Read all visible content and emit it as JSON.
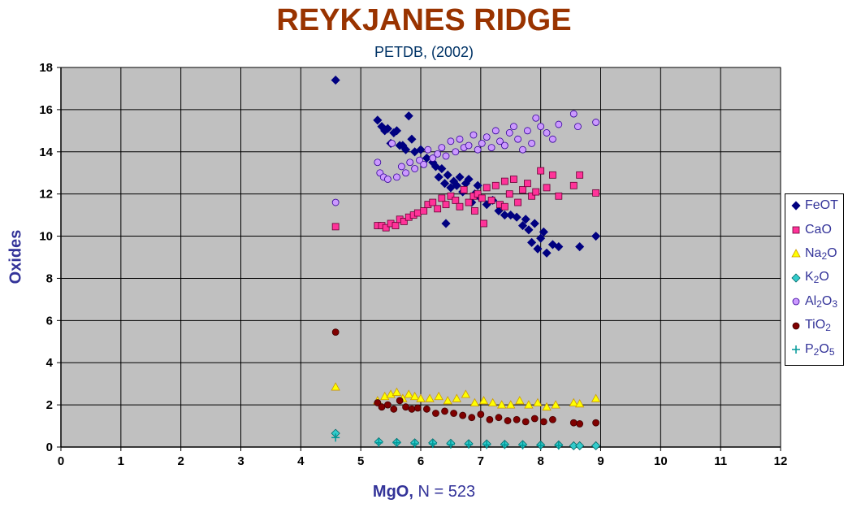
{
  "chart_data": {
    "type": "scatter",
    "title": "REYKJANES RIDGE",
    "subtitle": "PETDB, (2002)",
    "xlabel": "MgO,",
    "xlabel_note": "N = 523",
    "ylabel": "Oxides",
    "xlim": [
      0,
      12
    ],
    "ylim": [
      0,
      18
    ],
    "x_ticks": [
      "0",
      "1",
      "2",
      "3",
      "4",
      "5",
      "6",
      "7",
      "8",
      "9",
      "10",
      "11",
      "12"
    ],
    "y_ticks": [
      "0",
      "2",
      "4",
      "6",
      "8",
      "10",
      "12",
      "14",
      "16",
      "18"
    ],
    "grid": true,
    "plot_background": "#C0C0C0",
    "legend_position": "right",
    "series": [
      {
        "name": "FeOT",
        "marker": "diamond",
        "color": "#000080",
        "x": [
          4.58,
          5.28,
          5.35,
          5.4,
          5.45,
          5.5,
          5.55,
          5.6,
          5.65,
          5.7,
          5.75,
          5.8,
          5.85,
          5.9,
          6.0,
          6.1,
          6.2,
          6.25,
          6.3,
          6.35,
          6.4,
          6.45,
          6.5,
          6.55,
          6.6,
          6.65,
          6.7,
          6.75,
          6.8,
          6.85,
          6.9,
          6.95,
          7.0,
          7.1,
          7.2,
          7.3,
          7.4,
          7.5,
          7.6,
          7.7,
          7.75,
          7.8,
          7.85,
          7.9,
          7.95,
          8.0,
          8.05,
          8.1,
          8.2,
          8.3,
          8.65,
          8.92,
          6.42
        ],
        "y": [
          17.4,
          15.5,
          15.2,
          15.0,
          15.1,
          14.4,
          14.9,
          15.0,
          14.3,
          14.3,
          14.1,
          15.7,
          14.6,
          14.0,
          14.1,
          13.7,
          13.5,
          13.3,
          12.8,
          13.2,
          12.5,
          12.9,
          12.3,
          12.6,
          12.4,
          12.8,
          12.1,
          12.5,
          12.7,
          11.6,
          12.0,
          12.4,
          11.8,
          11.5,
          11.7,
          11.2,
          11.0,
          11.0,
          10.9,
          10.5,
          10.8,
          10.3,
          9.7,
          10.6,
          9.4,
          9.9,
          10.2,
          9.2,
          9.6,
          9.5,
          9.5,
          10.0,
          10.6
        ]
      },
      {
        "name": "CaO",
        "marker": "square",
        "color": "#FF3399",
        "stroke": "#660033",
        "x": [
          4.58,
          5.28,
          5.35,
          5.42,
          5.5,
          5.58,
          5.65,
          5.72,
          5.8,
          5.88,
          5.95,
          6.05,
          6.12,
          6.2,
          6.28,
          6.35,
          6.42,
          6.5,
          6.58,
          6.65,
          6.72,
          6.8,
          6.88,
          6.95,
          7.02,
          7.1,
          7.18,
          7.25,
          7.32,
          7.4,
          7.48,
          7.55,
          7.62,
          7.7,
          7.78,
          7.85,
          7.92,
          8.0,
          8.1,
          8.2,
          8.3,
          8.55,
          8.65,
          8.92,
          7.05,
          7.4,
          6.9
        ],
        "y": [
          10.45,
          10.5,
          10.5,
          10.4,
          10.6,
          10.5,
          10.8,
          10.7,
          10.9,
          11.0,
          11.1,
          11.2,
          11.5,
          11.6,
          11.3,
          11.8,
          11.5,
          11.9,
          11.7,
          11.4,
          12.2,
          11.6,
          11.9,
          12.0,
          11.8,
          12.3,
          11.7,
          12.4,
          11.5,
          12.6,
          12.0,
          12.7,
          11.6,
          12.2,
          12.5,
          11.9,
          12.1,
          13.1,
          12.3,
          12.9,
          11.9,
          12.4,
          12.9,
          12.05,
          10.6,
          11.4,
          11.2
        ]
      },
      {
        "name": "Na2O",
        "marker": "triangle",
        "color": "#FFFF00",
        "stroke": "#CC9900",
        "x": [
          4.58,
          5.28,
          5.4,
          5.5,
          5.6,
          5.7,
          5.8,
          5.9,
          6.0,
          6.15,
          6.3,
          6.45,
          6.6,
          6.75,
          6.9,
          7.05,
          7.2,
          7.35,
          7.5,
          7.65,
          7.8,
          7.95,
          8.1,
          8.25,
          8.55,
          8.65,
          8.92
        ],
        "y": [
          2.85,
          2.2,
          2.4,
          2.5,
          2.6,
          2.3,
          2.5,
          2.4,
          2.3,
          2.3,
          2.4,
          2.2,
          2.3,
          2.5,
          2.1,
          2.2,
          2.1,
          2.0,
          2.0,
          2.2,
          2.0,
          2.1,
          1.9,
          2.0,
          2.1,
          2.05,
          2.3
        ]
      },
      {
        "name": "K2O",
        "marker": "diamond",
        "color": "#33CCCC",
        "stroke": "#006666",
        "x": [
          4.58,
          5.3,
          5.6,
          5.9,
          6.2,
          6.5,
          6.8,
          7.1,
          7.4,
          7.7,
          8.0,
          8.3,
          8.55,
          8.65,
          8.92
        ],
        "y": [
          0.65,
          0.25,
          0.22,
          0.2,
          0.2,
          0.18,
          0.16,
          0.15,
          0.13,
          0.12,
          0.1,
          0.1,
          0.06,
          0.06,
          0.06
        ]
      },
      {
        "name": "Al2O3",
        "marker": "circle",
        "color": "#CC99FF",
        "stroke": "#330099",
        "x": [
          4.58,
          5.28,
          5.32,
          5.38,
          5.45,
          5.52,
          5.6,
          5.68,
          5.75,
          5.82,
          5.9,
          5.98,
          6.05,
          6.12,
          6.2,
          6.28,
          6.35,
          6.42,
          6.5,
          6.58,
          6.65,
          6.72,
          6.8,
          6.88,
          6.95,
          7.02,
          7.1,
          7.18,
          7.25,
          7.32,
          7.4,
          7.48,
          7.55,
          7.62,
          7.7,
          7.78,
          7.85,
          7.92,
          8.0,
          8.1,
          8.2,
          8.3,
          8.55,
          8.62,
          8.92
        ],
        "y": [
          11.6,
          13.5,
          13.0,
          12.8,
          12.7,
          14.4,
          12.8,
          13.3,
          13.0,
          13.5,
          13.2,
          13.6,
          13.4,
          14.1,
          13.7,
          13.9,
          14.2,
          13.8,
          14.5,
          14.0,
          14.6,
          14.2,
          14.3,
          14.8,
          14.1,
          14.4,
          14.7,
          14.2,
          15.0,
          14.5,
          14.3,
          14.9,
          15.2,
          14.6,
          14.1,
          15.0,
          14.4,
          15.6,
          15.2,
          14.9,
          14.6,
          15.3,
          15.8,
          15.2,
          15.4
        ]
      },
      {
        "name": "TiO2",
        "marker": "circle",
        "color": "#800000",
        "stroke": "#400000",
        "x": [
          4.58,
          5.28,
          5.35,
          5.45,
          5.55,
          5.65,
          5.75,
          5.85,
          5.95,
          6.1,
          6.25,
          6.4,
          6.55,
          6.7,
          6.85,
          7.0,
          7.15,
          7.3,
          7.45,
          7.6,
          7.75,
          7.9,
          8.05,
          8.2,
          8.55,
          8.65,
          8.92
        ],
        "y": [
          5.45,
          2.1,
          1.9,
          2.0,
          1.8,
          2.2,
          1.9,
          1.8,
          1.85,
          1.8,
          1.6,
          1.7,
          1.6,
          1.5,
          1.4,
          1.55,
          1.3,
          1.4,
          1.25,
          1.3,
          1.2,
          1.35,
          1.2,
          1.3,
          1.15,
          1.1,
          1.15
        ]
      },
      {
        "name": "P2O5",
        "marker": "plus",
        "color": "#009999",
        "x": [
          4.58,
          5.3,
          5.6,
          5.9,
          6.2,
          6.5,
          6.8,
          7.1,
          7.4,
          7.7,
          8.0,
          8.3
        ],
        "y": [
          0.45,
          0.2,
          0.2,
          0.15,
          0.15,
          0.12,
          0.12,
          0.1,
          0.1,
          0.08,
          0.07,
          0.07
        ]
      }
    ]
  },
  "legend": [
    {
      "label": "FeOT",
      "sub": "",
      "rest": ""
    },
    {
      "label": "CaO",
      "sub": "",
      "rest": ""
    },
    {
      "label": "Na",
      "sub": "2",
      "rest": "O"
    },
    {
      "label": "K",
      "sub": "2",
      "rest": "O"
    },
    {
      "label": "Al",
      "sub": "2",
      "rest": "O",
      "sub2": "3"
    },
    {
      "label": "TiO",
      "sub": "2",
      "rest": ""
    },
    {
      "label": "P",
      "sub": "2",
      "rest": "O",
      "sub2": "5"
    }
  ]
}
